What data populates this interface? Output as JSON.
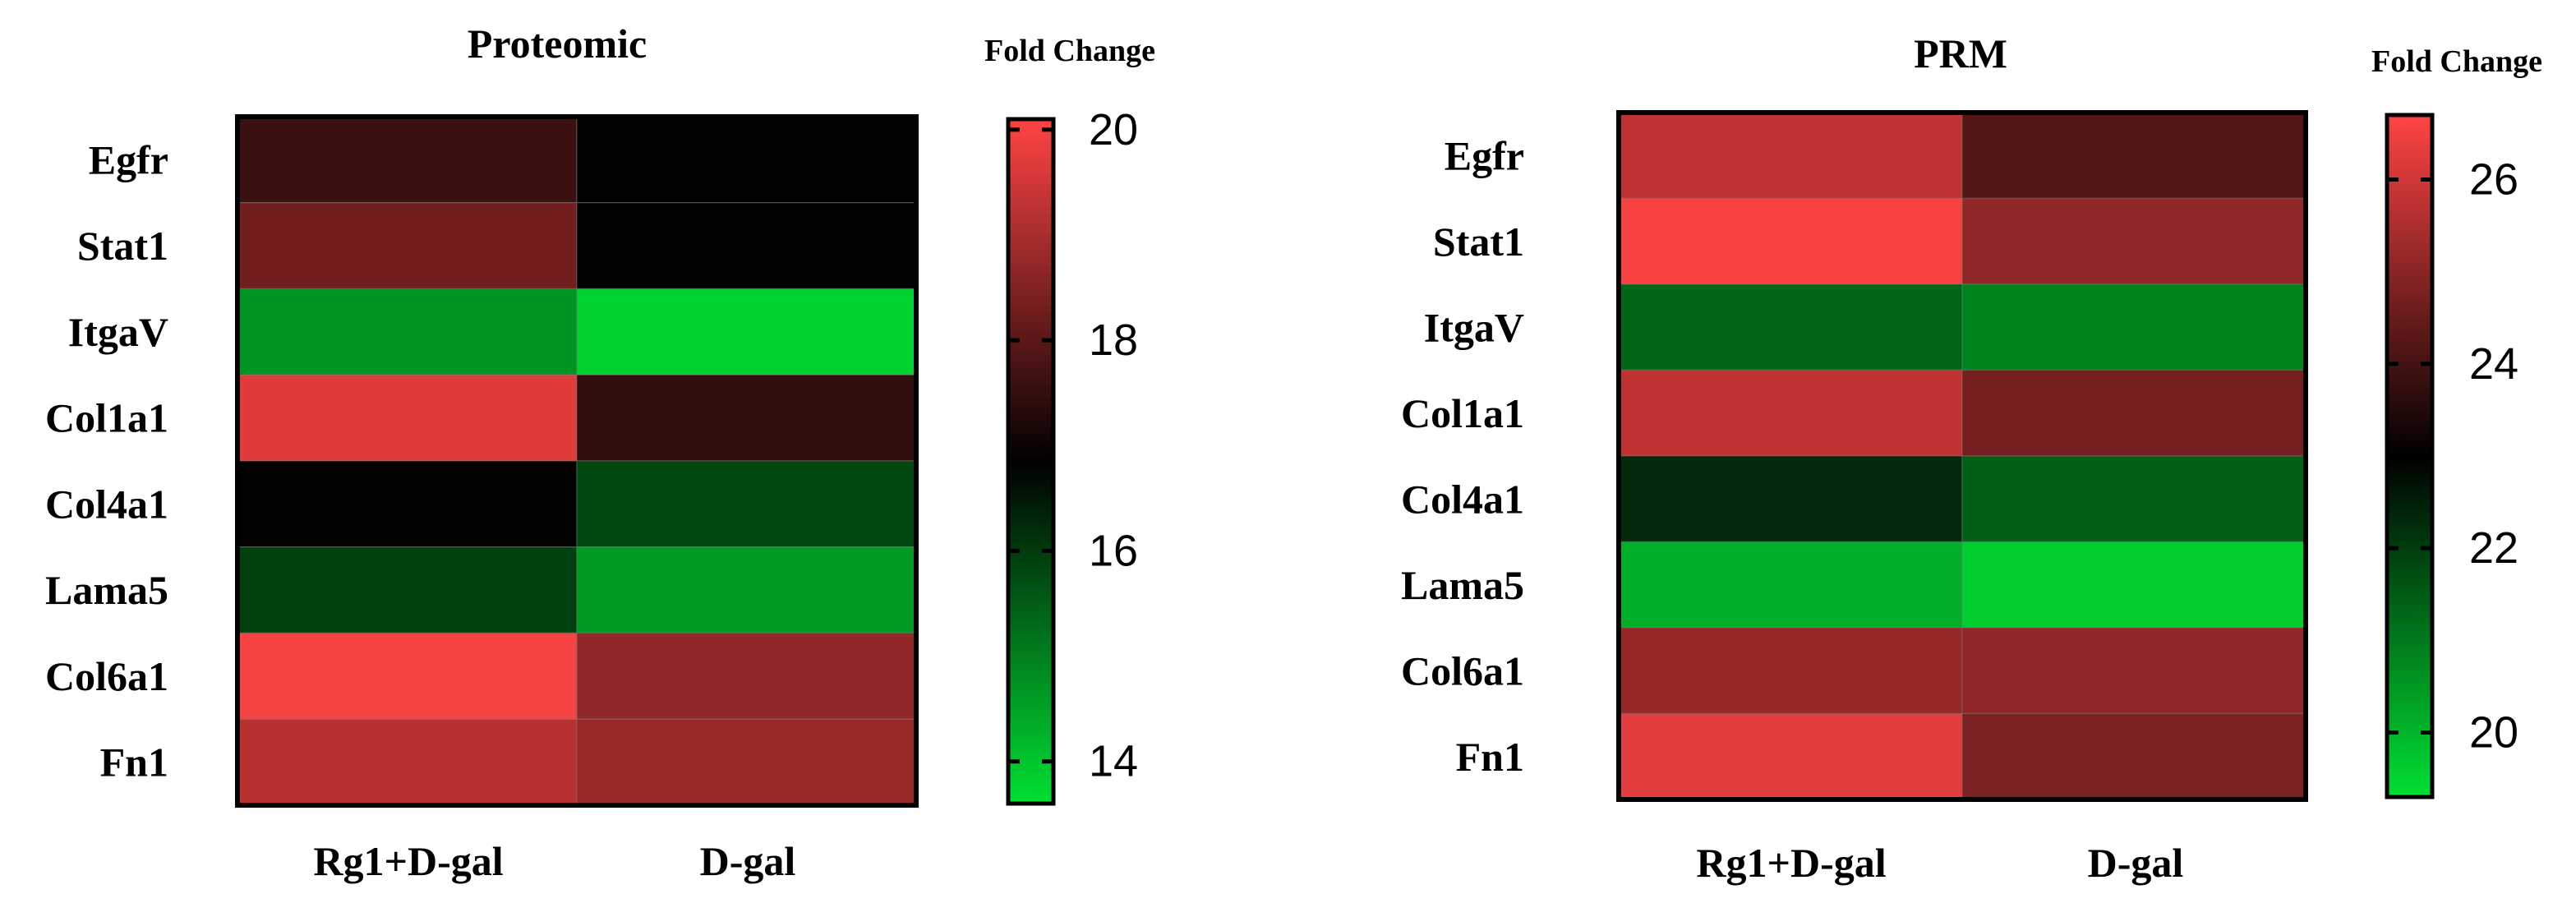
{
  "chart_data": [
    {
      "type": "heatmap",
      "title": "Proteomic",
      "colorbar_label": "Fold Change",
      "rows": [
        "Egfr",
        "Stat1",
        "ItgaV",
        "Col1a1",
        "Col4a1",
        "Lama5",
        "Col6a1",
        "Fn1"
      ],
      "columns": [
        "Rg1+D-gal",
        "D-gal"
      ],
      "values": [
        [
          17.6,
          16.9
        ],
        [
          18.3,
          16.9
        ],
        [
          14.7,
          13.8
        ],
        [
          19.7,
          17.5
        ],
        [
          16.9,
          15.8
        ],
        [
          15.9,
          14.6
        ],
        [
          20.0,
          18.7
        ],
        [
          19.2,
          18.8
        ]
      ],
      "color_range": [
        13.6,
        20.1
      ],
      "colorbar_ticks": [
        14,
        16,
        18,
        20
      ],
      "colormap": {
        "low": "#00e033",
        "mid": "#000000",
        "high": "#ff4444"
      }
    },
    {
      "type": "heatmap",
      "title": "PRM",
      "colorbar_label": "Fold Change",
      "rows": [
        "Egfr",
        "Stat1",
        "ItgaV",
        "Col1a1",
        "Col4a1",
        "Lama5",
        "Col6a1",
        "Fn1"
      ],
      "columns": [
        "Rg1+D-gal",
        "D-gal"
      ],
      "values": [
        [
          25.8,
          24.2
        ],
        [
          26.6,
          25.1
        ],
        [
          21.3,
          20.8
        ],
        [
          25.8,
          24.7
        ],
        [
          22.3,
          21.4
        ],
        [
          20.1,
          19.6
        ],
        [
          25.2,
          25.1
        ],
        [
          26.3,
          24.8
        ]
      ],
      "color_range": [
        19.3,
        26.7
      ],
      "colorbar_ticks": [
        20,
        22,
        24,
        26
      ],
      "colormap": {
        "low": "#00e033",
        "mid": "#000000",
        "high": "#ff4444"
      }
    }
  ]
}
